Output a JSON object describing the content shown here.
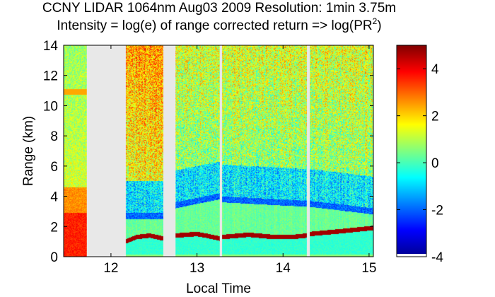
{
  "chart_data": {
    "type": "heatmap",
    "title": "CCNY LIDAR 1064nm Aug03 2009 Resolution: 1min 3.75m",
    "subtitle_main": "Intensity = log(e) of range corrected return => log(PR",
    "subtitle_sup": "2",
    "subtitle_end": ")",
    "xlabel": "Local Time",
    "ylabel": "Range (km)",
    "xlim": [
      11.45,
      15.05
    ],
    "ylim": [
      0,
      14
    ],
    "x_ticks": [
      12,
      13,
      14,
      15
    ],
    "y_ticks": [
      0,
      2,
      4,
      6,
      8,
      10,
      12,
      14
    ],
    "colorbar": {
      "clim": [
        -4,
        5
      ],
      "ticks": [
        -4,
        -2,
        0,
        2,
        4
      ]
    },
    "gaps": [
      [
        11.72,
        12.17
      ],
      [
        12.61,
        12.75
      ],
      [
        13.265,
        13.29
      ],
      [
        14.28,
        14.31
      ]
    ],
    "boundary_layer": [
      {
        "x": 11.45,
        "y": 4.6
      },
      {
        "x": 11.72,
        "y": 4.6
      },
      {
        "x": 12.17,
        "y": 1.1
      },
      {
        "x": 12.3,
        "y": 1.4
      },
      {
        "x": 12.45,
        "y": 1.5
      },
      {
        "x": 12.61,
        "y": 1.3
      },
      {
        "x": 12.75,
        "y": 1.5
      },
      {
        "x": 13.0,
        "y": 1.6
      },
      {
        "x": 13.1,
        "y": 1.5
      },
      {
        "x": 13.265,
        "y": 1.3
      },
      {
        "x": 13.29,
        "y": 1.4
      },
      {
        "x": 13.6,
        "y": 1.55
      },
      {
        "x": 13.9,
        "y": 1.4
      },
      {
        "x": 14.1,
        "y": 1.4
      },
      {
        "x": 14.28,
        "y": 1.5
      },
      {
        "x": 14.31,
        "y": 1.6
      },
      {
        "x": 14.7,
        "y": 1.8
      },
      {
        "x": 15.05,
        "y": 2.0
      }
    ],
    "cloud_top": [
      {
        "x": 12.17,
        "y": 2.5
      },
      {
        "x": 12.61,
        "y": 2.5
      },
      {
        "x": 12.75,
        "y": 3.2
      },
      {
        "x": 13.265,
        "y": 3.8
      },
      {
        "x": 13.29,
        "y": 3.6
      },
      {
        "x": 14.28,
        "y": 3.3
      },
      {
        "x": 14.31,
        "y": 3.3
      },
      {
        "x": 15.05,
        "y": 2.8
      }
    ]
  }
}
